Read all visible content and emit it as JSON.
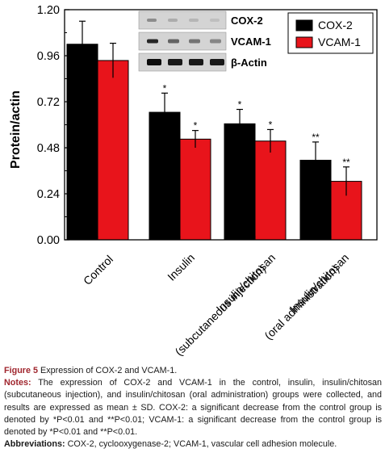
{
  "chart_data": {
    "type": "bar",
    "ylabel": "Protein/actin",
    "ylim": [
      0,
      1.2
    ],
    "yticks": [
      "0.00",
      "0.24",
      "0.48",
      "0.72",
      "0.96",
      "1.20"
    ],
    "ytick_values": [
      0,
      0.24,
      0.48,
      0.72,
      0.96,
      1.2
    ],
    "categories": [
      [
        "Control"
      ],
      [
        "Insulin"
      ],
      [
        "Insulin/chitosan",
        "(subcutaneous injection)"
      ],
      [
        "Insulin/chitosan",
        "(oral administration)"
      ]
    ],
    "series": [
      {
        "name": "COX-2",
        "color": "#000000",
        "values": [
          1.02,
          0.665,
          0.605,
          0.415
        ],
        "errors": [
          0.12,
          0.1,
          0.075,
          0.095
        ],
        "significance": [
          "",
          "*",
          "*",
          "**"
        ]
      },
      {
        "name": "VCAM-1",
        "color": "#e8141b",
        "values": [
          0.935,
          0.525,
          0.515,
          0.305
        ],
        "errors": [
          0.09,
          0.045,
          0.06,
          0.075
        ],
        "significance": [
          "",
          "*",
          "*",
          "**"
        ]
      }
    ],
    "legend": {
      "placement": "top-right"
    },
    "blot_inset": {
      "labels": [
        "COX-2",
        "VCAM-1",
        "β-Actin"
      ]
    }
  },
  "caption": {
    "figure_label": "Figure 5",
    "figure_title": "Expression of COX-2 and VCAM-1.",
    "notes_label": "Notes:",
    "notes_text": "The expression of COX-2 and VCAM-1 in the control, insulin, insulin/chitosan (subcutaneous injection), and insulin/chitosan (oral administration) groups were collected, and results are expressed as mean ± SD. COX-2: a significant decrease from the control group is denoted by *P<0.01 and **P<0.01; VCAM-1: a significant decrease from the control group is denoted by *P<0.01 and **P<0.01.",
    "abbr_label": "Abbreviations:",
    "abbr_text": "COX-2, cyclooxygenase-2; VCAM-1, vascular cell adhesion molecule."
  }
}
